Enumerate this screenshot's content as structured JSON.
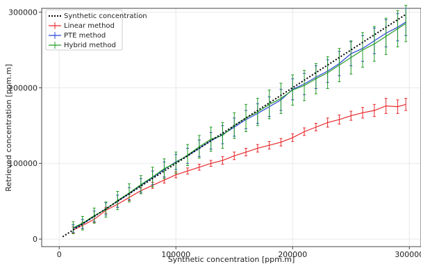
{
  "chart_data": {
    "type": "line",
    "xlabel": "Synthetic concentration [ppm.m]",
    "ylabel": "Retrieved concentration [ppm.m]",
    "xlim": [
      -15000,
      310000
    ],
    "ylim": [
      -10000,
      305000
    ],
    "x_ticks": [
      0,
      100000,
      200000,
      300000
    ],
    "x_tick_labels": [
      "0",
      "100000",
      "200000",
      "300000"
    ],
    "y_ticks": [
      0,
      100000,
      200000,
      300000
    ],
    "y_tick_labels": [
      "0",
      "100000",
      "200000",
      "300000"
    ],
    "grid": true,
    "legend_position": "top-left",
    "series": [
      {
        "name": "Synthetic concentration",
        "style": "dotted",
        "color": "#000000",
        "x": [
          3000,
          50000,
          100000,
          150000,
          200000,
          250000,
          297000
        ],
        "y": [
          3000,
          50000,
          100000,
          150000,
          200000,
          250000,
          297000
        ]
      },
      {
        "name": "Linear method",
        "style": "errorbar",
        "color": "#e8262a",
        "x": [
          12000,
          20000,
          30000,
          40000,
          50000,
          60000,
          70000,
          80000,
          90000,
          100000,
          110000,
          120000,
          130000,
          140000,
          150000,
          160000,
          170000,
          180000,
          190000,
          200000,
          210000,
          220000,
          230000,
          240000,
          250000,
          260000,
          270000,
          280000,
          290000,
          297000
        ],
        "y": [
          12000,
          18000,
          26000,
          38000,
          46000,
          55000,
          64000,
          71000,
          78000,
          85000,
          90000,
          95000,
          100000,
          104000,
          110000,
          115000,
          120000,
          124000,
          128000,
          134000,
          142000,
          148000,
          154000,
          158000,
          163000,
          167000,
          170000,
          176000,
          175000,
          178000
        ],
        "err": [
          4000,
          4000,
          4000,
          4000,
          4000,
          4000,
          4000,
          4000,
          4000,
          4000,
          4000,
          4000,
          4000,
          5000,
          5000,
          5000,
          5000,
          5000,
          5000,
          5000,
          5000,
          5000,
          6000,
          6000,
          6000,
          7000,
          8000,
          10000,
          9000,
          8000
        ]
      },
      {
        "name": "PTE method",
        "style": "errorbar",
        "color": "#2741d8",
        "x": [
          12000,
          20000,
          30000,
          40000,
          50000,
          60000,
          70000,
          80000,
          90000,
          100000,
          110000,
          120000,
          130000,
          140000,
          150000,
          160000,
          170000,
          180000,
          190000,
          200000,
          210000,
          220000,
          230000,
          240000,
          250000,
          260000,
          270000,
          280000,
          290000,
          297000
        ],
        "y": [
          14000,
          20000,
          30000,
          40000,
          50000,
          60000,
          71000,
          81000,
          92000,
          102000,
          110000,
          120000,
          130000,
          138000,
          148000,
          158000,
          166000,
          175000,
          184000,
          198000,
          205000,
          214000,
          222000,
          232000,
          245000,
          252000,
          262000,
          272000,
          280000,
          287000
        ],
        "err": [
          5000,
          6000,
          7000,
          8000,
          8000,
          8000,
          9000,
          9000,
          10000,
          10000,
          10000,
          11000,
          11000,
          12000,
          12000,
          12000,
          13000,
          13000,
          14000,
          14000,
          14000,
          15000,
          15000,
          16000,
          16000,
          17000,
          17000,
          18000,
          18000,
          18000
        ]
      },
      {
        "name": "Hybrid method",
        "style": "errorbar",
        "color": "#229b22",
        "x": [
          12000,
          20000,
          30000,
          40000,
          50000,
          60000,
          70000,
          80000,
          90000,
          100000,
          110000,
          120000,
          130000,
          140000,
          150000,
          160000,
          170000,
          180000,
          190000,
          200000,
          210000,
          220000,
          230000,
          240000,
          250000,
          260000,
          270000,
          280000,
          290000,
          297000
        ],
        "y": [
          15000,
          21000,
          31000,
          39000,
          51000,
          61000,
          72000,
          82000,
          93000,
          101000,
          111000,
          122000,
          132000,
          137000,
          150000,
          160000,
          168000,
          178000,
          186000,
          197000,
          203000,
          212000,
          220000,
          230000,
          240000,
          250000,
          258000,
          268000,
          278000,
          285000
        ],
        "err": [
          8000,
          9000,
          10000,
          10000,
          12000,
          12000,
          12000,
          13000,
          13000,
          14000,
          14000,
          15000,
          16000,
          17000,
          17000,
          18000,
          18000,
          19000,
          20000,
          20000,
          20000,
          20000,
          21000,
          22000,
          22000,
          23000,
          23000,
          24000,
          24000,
          24000
        ]
      }
    ]
  }
}
